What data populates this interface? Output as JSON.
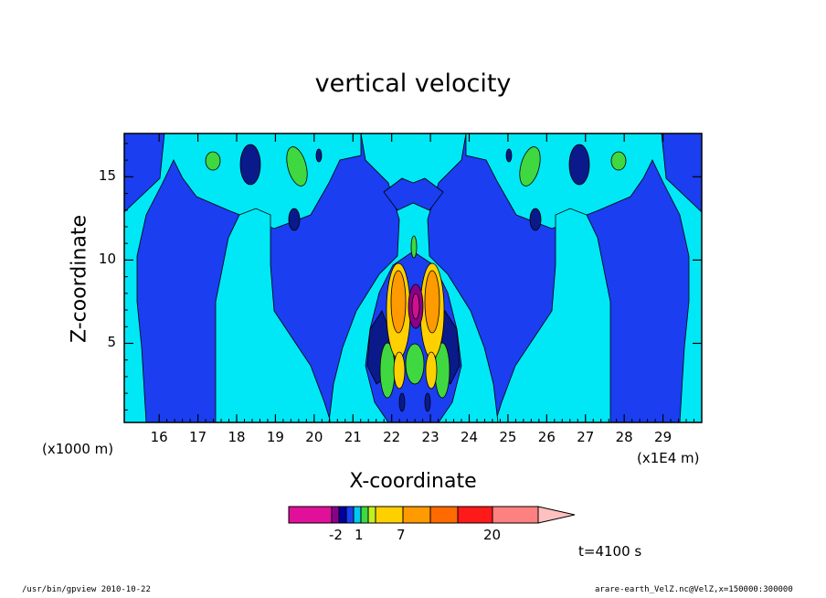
{
  "chart_data": {
    "type": "heatmap",
    "title": "vertical velocity",
    "xlabel": "X-coordinate",
    "ylabel": "Z-coordinate",
    "x_scale_left": "(x1000 m)",
    "x_scale_right": "(x1E4 m)",
    "x_ticks": [
      "16",
      "17",
      "18",
      "19",
      "20",
      "21",
      "22",
      "23",
      "24",
      "25",
      "26",
      "27",
      "28",
      "29"
    ],
    "y_ticks": [
      "5",
      "10",
      "15"
    ],
    "xlim": [
      15.1,
      30.0
    ],
    "ylim": [
      0.25,
      17.6
    ],
    "colorbar": {
      "colors": [
        "#e0109a",
        "#8b008b",
        "#0000a0",
        "#1a3ef0",
        "#00c8f0",
        "#40d840",
        "#c0f020",
        "#ffd000",
        "#ff9a00",
        "#ff6a00",
        "#ff1a1a",
        "#ff8080",
        "#ffc0c0"
      ],
      "labels": [
        "-2",
        "1",
        "7",
        "20"
      ]
    },
    "time_label": "t=4100 s",
    "footer_left": "/usr/bin/gpview   2010-10-22",
    "footer_right": "arare-earth_VelZ.nc@VelZ,x=150000:300000"
  },
  "colors": {
    "background_field": "#1a3ef0",
    "light_band": "#00e8f5",
    "dark_core": "#0a1a8a",
    "positive_green": "#40d840",
    "positive_yellow": "#ffd000",
    "positive_orange": "#ff9a00",
    "negative_core": "#d01090"
  }
}
